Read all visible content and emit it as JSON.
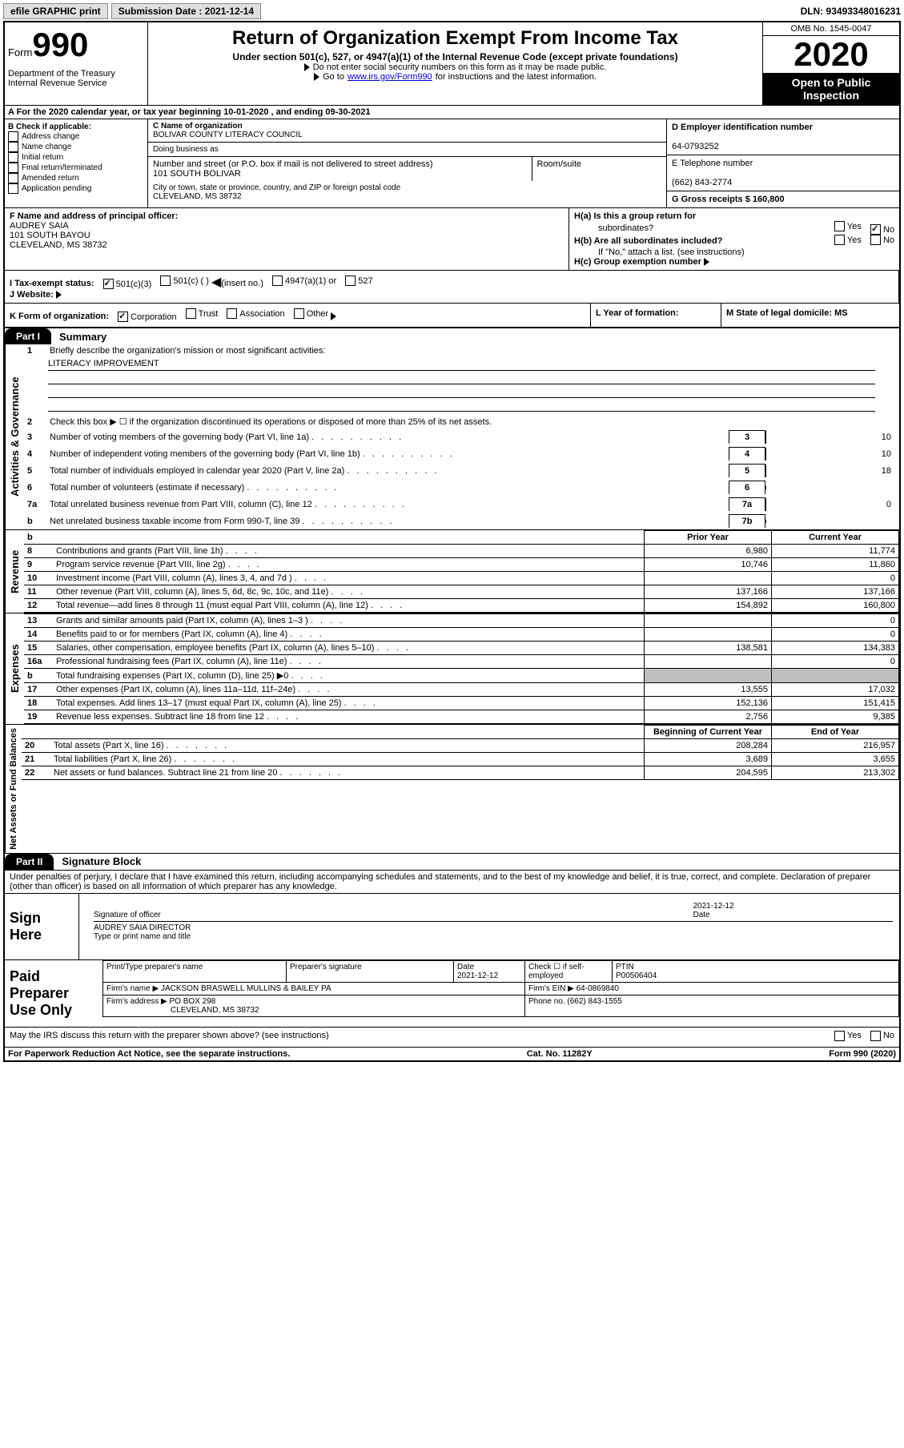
{
  "topbar": {
    "efile": "efile GRAPHIC print",
    "submission_label": "Submission Date : 2021-12-14",
    "dln_label": "DLN: 93493348016231"
  },
  "header": {
    "form_prefix": "Form",
    "form_number": "990",
    "dept": "Department of the Treasury\nInternal Revenue Service",
    "title": "Return of Organization Exempt From Income Tax",
    "subtitle": "Under section 501(c), 527, or 4947(a)(1) of the Internal Revenue Code (except private foundations)",
    "note1": "Do not enter social security numbers on this form as it may be made public.",
    "note2_pre": "Go to ",
    "note2_link": "www.irs.gov/Form990",
    "note2_post": " for instructions and the latest information.",
    "omb": "OMB No. 1545-0047",
    "year": "2020",
    "open": "Open to Public Inspection"
  },
  "rowA": "A For the 2020 calendar year, or tax year beginning 10-01-2020   , and ending 09-30-2021",
  "colB": {
    "hdr": "B Check if applicable:",
    "items": [
      "Address change",
      "Name change",
      "Initial return",
      "Final return/terminated",
      "Amended return",
      "Application pending"
    ]
  },
  "colC": {
    "name_lbl": "C Name of organization",
    "name": "BOLIVAR COUNTY LITERACY COUNCIL",
    "dba_lbl": "Doing business as",
    "addr_lbl": "Number and street (or P.O. box if mail is not delivered to street address)",
    "room_lbl": "Room/suite",
    "addr": "101 SOUTH BOLIVAR",
    "city_lbl": "City or town, state or province, country, and ZIP or foreign postal code",
    "city": "CLEVELAND, MS  38732"
  },
  "colD": {
    "ein_lbl": "D Employer identification number",
    "ein": "64-0793252",
    "phone_lbl": "E Telephone number",
    "phone": "(662) 843-2774",
    "gross_lbl": "G Gross receipts $ 160,800"
  },
  "rowF": {
    "lbl": "F Name and address of principal officer:",
    "name": "AUDREY SAIA",
    "addr1": "101 SOUTH BAYOU",
    "addr2": "CLEVELAND, MS  38732"
  },
  "rowH": {
    "ha_lbl": "H(a)  Is this a group return for",
    "ha_sub": "subordinates?",
    "hb_lbl": "H(b)  Are all subordinates included?",
    "hb_note": "If \"No,\" attach a list. (see instructions)",
    "hc_lbl": "H(c)  Group exemption number"
  },
  "rowI": {
    "lbl": "I  Tax-exempt status:",
    "opts": [
      "501(c)(3)",
      "501(c) (  )",
      "(insert no.)",
      "4947(a)(1) or",
      "527"
    ]
  },
  "rowJ": {
    "lbl": "J  Website:"
  },
  "rowK": {
    "lbl": "K Form of organization:",
    "opts": [
      "Corporation",
      "Trust",
      "Association",
      "Other"
    ]
  },
  "rowL": "L Year of formation:",
  "rowM": "M State of legal domicile: MS",
  "part1": {
    "tab": "Part I",
    "title": "Summary",
    "q1": "Briefly describe the organization's mission or most significant activities:",
    "q1_ans": "LITERACY IMPROVEMENT",
    "q2": "Check this box ▶ ☐  if the organization discontinued its operations or disposed of more than 25% of its net assets.",
    "lines": [
      {
        "n": "3",
        "d": "Number of voting members of the governing body (Part VI, line 1a)",
        "box": "3",
        "v": "10"
      },
      {
        "n": "4",
        "d": "Number of independent voting members of the governing body (Part VI, line 1b)",
        "box": "4",
        "v": "10"
      },
      {
        "n": "5",
        "d": "Total number of individuals employed in calendar year 2020 (Part V, line 2a)",
        "box": "5",
        "v": "18"
      },
      {
        "n": "6",
        "d": "Total number of volunteers (estimate if necessary)",
        "box": "6",
        "v": ""
      },
      {
        "n": "7a",
        "d": "Total unrelated business revenue from Part VIII, column (C), line 12",
        "box": "7a",
        "v": "0"
      },
      {
        "n": "b",
        "d": "Net unrelated business taxable income from Form 990-T, line 39",
        "box": "7b",
        "v": ""
      }
    ],
    "cols": {
      "prior": "Prior Year",
      "current": "Current Year",
      "begin": "Beginning of Current Year",
      "end": "End of Year"
    },
    "revenue": [
      {
        "n": "8",
        "d": "Contributions and grants (Part VIII, line 1h)",
        "p": "6,980",
        "c": "11,774"
      },
      {
        "n": "9",
        "d": "Program service revenue (Part VIII, line 2g)",
        "p": "10,746",
        "c": "11,860"
      },
      {
        "n": "10",
        "d": "Investment income (Part VIII, column (A), lines 3, 4, and 7d )",
        "p": "",
        "c": "0"
      },
      {
        "n": "11",
        "d": "Other revenue (Part VIII, column (A), lines 5, 6d, 8c, 9c, 10c, and 11e)",
        "p": "137,166",
        "c": "137,166"
      },
      {
        "n": "12",
        "d": "Total revenue—add lines 8 through 11 (must equal Part VIII, column (A), line 12)",
        "p": "154,892",
        "c": "160,800"
      }
    ],
    "expenses": [
      {
        "n": "13",
        "d": "Grants and similar amounts paid (Part IX, column (A), lines 1–3 )",
        "p": "",
        "c": "0"
      },
      {
        "n": "14",
        "d": "Benefits paid to or for members (Part IX, column (A), line 4)",
        "p": "",
        "c": "0"
      },
      {
        "n": "15",
        "d": "Salaries, other compensation, employee benefits (Part IX, column (A), lines 5–10)",
        "p": "138,581",
        "c": "134,383"
      },
      {
        "n": "16a",
        "d": "Professional fundraising fees (Part IX, column (A), line 11e)",
        "p": "",
        "c": "0"
      },
      {
        "n": "b",
        "d": "Total fundraising expenses (Part IX, column (D), line 25) ▶0",
        "p": "grey",
        "c": "grey"
      },
      {
        "n": "17",
        "d": "Other expenses (Part IX, column (A), lines 11a–11d, 11f–24e)",
        "p": "13,555",
        "c": "17,032"
      },
      {
        "n": "18",
        "d": "Total expenses. Add lines 13–17 (must equal Part IX, column (A), line 25)",
        "p": "152,136",
        "c": "151,415"
      },
      {
        "n": "19",
        "d": "Revenue less expenses. Subtract line 18 from line 12",
        "p": "2,756",
        "c": "9,385"
      }
    ],
    "netassets": [
      {
        "n": "20",
        "d": "Total assets (Part X, line 16)",
        "p": "208,284",
        "c": "216,957"
      },
      {
        "n": "21",
        "d": "Total liabilities (Part X, line 26)",
        "p": "3,689",
        "c": "3,655"
      },
      {
        "n": "22",
        "d": "Net assets or fund balances. Subtract line 21 from line 20",
        "p": "204,595",
        "c": "213,302"
      }
    ],
    "vtabs": {
      "gov": "Activities & Governance",
      "rev": "Revenue",
      "exp": "Expenses",
      "net": "Net Assets or Fund Balances"
    }
  },
  "part2": {
    "tab": "Part II",
    "title": "Signature Block",
    "perjury": "Under penalties of perjury, I declare that I have examined this return, including accompanying schedules and statements, and to the best of my knowledge and belief, it is true, correct, and complete. Declaration of preparer (other than officer) is based on all information of which preparer has any knowledge.",
    "sign_here": "Sign Here",
    "sig_officer": "Signature of officer",
    "date": "Date",
    "sig_date": "2021-12-12",
    "officer": "AUDREY SAIA  DIRECTOR",
    "type_name": "Type or print name and title",
    "paid": "Paid Preparer Use Only",
    "prep_name_lbl": "Print/Type preparer's name",
    "prep_sig_lbl": "Preparer's signature",
    "prep_date": "2021-12-12",
    "self_emp": "Check ☐ if self-employed",
    "ptin_lbl": "PTIN",
    "ptin": "P00506404",
    "firm_name_lbl": "Firm's name    ▶",
    "firm_name": "JACKSON BRASWELL MULLINS & BAILEY PA",
    "firm_ein_lbl": "Firm's EIN ▶",
    "firm_ein": "64-0869840",
    "firm_addr_lbl": "Firm's address ▶",
    "firm_addr1": "PO BOX 298",
    "firm_addr2": "CLEVELAND, MS  38732",
    "firm_phone_lbl": "Phone no.",
    "firm_phone": "(662) 843-1555",
    "discuss": "May the IRS discuss this return with the preparer shown above? (see instructions)"
  },
  "footer": {
    "left": "For Paperwork Reduction Act Notice, see the separate instructions.",
    "mid": "Cat. No. 11282Y",
    "right": "Form 990 (2020)"
  }
}
